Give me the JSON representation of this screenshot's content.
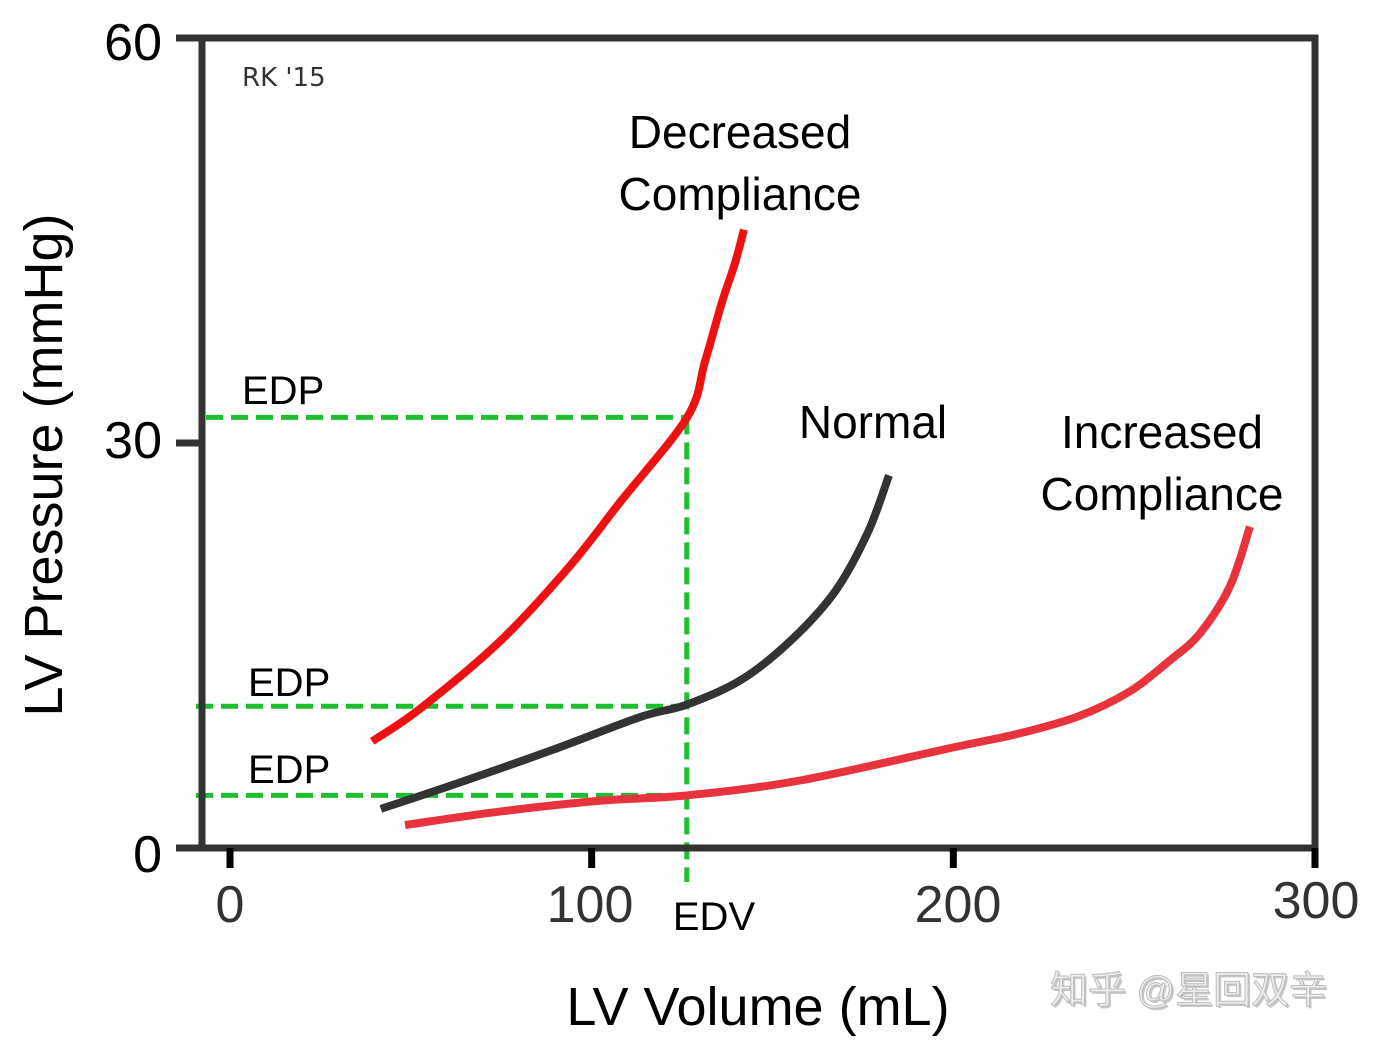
{
  "chart_data": {
    "type": "line",
    "title": "",
    "xlabel": "LV Volume (mL)",
    "ylabel": "LV Pressure (mmHg)",
    "xlim": [
      0,
      300
    ],
    "ylim": [
      0,
      60
    ],
    "x_ticks": [
      0,
      100,
      200,
      300
    ],
    "x_tick_labels": [
      "0",
      "100",
      "200",
      "300"
    ],
    "y_ticks": [
      0,
      30,
      60
    ],
    "y_tick_labels": [
      "0",
      "30",
      "60"
    ],
    "grid": false,
    "legend": "none",
    "series": [
      {
        "name": "Decreased Compliance",
        "label": [
          "Decreased",
          "Compliance"
        ],
        "color": "#ee1111",
        "x": [
          39.3,
          52.5,
          74.6,
          94.0,
          107.8,
          126.4,
          131.3,
          136.0,
          139.6,
          142.1
        ],
        "y": [
          7.9,
          10.3,
          15.3,
          20.9,
          25.6,
          31.9,
          36.0,
          40.4,
          43.3,
          45.8
        ]
      },
      {
        "name": "Normal",
        "label": [
          "Normal"
        ],
        "color": "#333333",
        "x": [
          41.7,
          60.8,
          88.5,
          113.4,
          126.1,
          141.0,
          154.8,
          167.3,
          176.4,
          182.2
        ],
        "y": [
          2.9,
          4.6,
          7.2,
          9.7,
          10.6,
          12.4,
          15.3,
          19.0,
          23.4,
          27.6
        ]
      },
      {
        "name": "Increased Compliance",
        "label": [
          "Increased",
          "Compliance"
        ],
        "color": "#e8333d",
        "x": [
          48.4,
          74.6,
          102.3,
          126.4,
          157.6,
          199.1,
          218.4,
          235.0,
          248.8,
          259.9,
          268.2,
          276.5,
          282.0
        ],
        "y": [
          1.7,
          2.7,
          3.5,
          3.9,
          5.0,
          7.4,
          8.5,
          9.8,
          11.6,
          13.9,
          15.9,
          19.4,
          23.8
        ]
      }
    ],
    "reference_lines": {
      "color": "#1cbf2e",
      "edv": {
        "label": "EDV",
        "x": 126.3
      },
      "edp": [
        {
          "label": "EDP",
          "y": 31.9,
          "curve": "Decreased Compliance"
        },
        {
          "label": "EDP",
          "y": 10.5,
          "curve": "Normal"
        },
        {
          "label": "EDP",
          "y": 3.9,
          "curve": "Increased Compliance"
        }
      ]
    },
    "annotations": {
      "signature": "RK '15",
      "watermark": "知乎 @星回双辛"
    }
  },
  "colors": {
    "axis": "#333333",
    "text": "#000000",
    "tick_label_x": "#333333",
    "watermark": "#c8c8c8"
  }
}
